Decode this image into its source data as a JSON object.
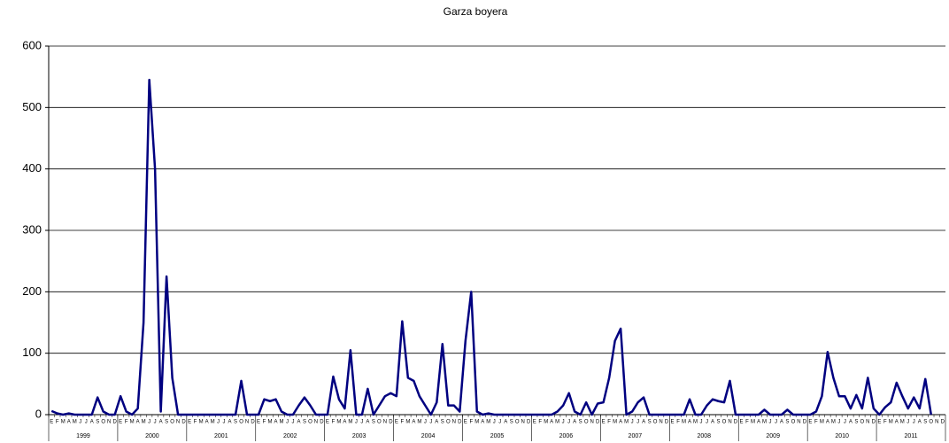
{
  "chart_data": {
    "type": "line",
    "title": "Garza boyera",
    "categories": [
      "E",
      "F",
      "M",
      "A",
      "M",
      "J",
      "J",
      "A",
      "S",
      "O",
      "N",
      "D",
      "E",
      "F",
      "M",
      "A",
      "M",
      "J",
      "J",
      "A",
      "S",
      "O",
      "N",
      "D",
      "E",
      "F",
      "M",
      "A",
      "M",
      "J",
      "J",
      "A",
      "S",
      "O",
      "N",
      "D",
      "E",
      "F",
      "M",
      "A",
      "M",
      "J",
      "J",
      "A",
      "S",
      "O",
      "N",
      "D",
      "E",
      "F",
      "M",
      "A",
      "M",
      "J",
      "J",
      "A",
      "S",
      "O",
      "N",
      "D",
      "E",
      "F",
      "M",
      "A",
      "M",
      "J",
      "J",
      "A",
      "S",
      "O",
      "N",
      "D",
      "E",
      "F",
      "M",
      "A",
      "M",
      "J",
      "J",
      "A",
      "S",
      "O",
      "N",
      "D",
      "E",
      "F",
      "M",
      "A",
      "M",
      "J",
      "J",
      "A",
      "S",
      "O",
      "N",
      "D",
      "E",
      "F",
      "M",
      "A",
      "M",
      "J",
      "J",
      "A",
      "S",
      "O",
      "N",
      "D",
      "E",
      "F",
      "M",
      "A",
      "M",
      "J",
      "J",
      "A",
      "S",
      "O",
      "N",
      "D",
      "E",
      "F",
      "M",
      "A",
      "M",
      "J",
      "J",
      "A",
      "S",
      "O",
      "N",
      "D",
      "E",
      "F",
      "M",
      "A",
      "M",
      "J",
      "J",
      "A",
      "S",
      "O",
      "N",
      "D",
      "E",
      "F",
      "M",
      "A",
      "M",
      "J",
      "J",
      "A",
      "S",
      "O",
      "N",
      "D"
    ],
    "x_groups": [
      "1999",
      "2000",
      "2001",
      "2002",
      "2003",
      "2004",
      "2005",
      "2006",
      "2007",
      "2008",
      "2009",
      "2010",
      "2011"
    ],
    "series": [
      {
        "color": "#000080",
        "values": [
          6,
          2,
          0,
          2,
          0,
          0,
          0,
          0,
          28,
          5,
          0,
          0,
          30,
          5,
          0,
          10,
          150,
          545,
          400,
          5,
          225,
          60,
          0,
          0,
          0,
          0,
          0,
          0,
          0,
          0,
          0,
          0,
          0,
          55,
          0,
          0,
          0,
          25,
          22,
          25,
          5,
          0,
          0,
          15,
          28,
          15,
          0,
          0,
          0,
          62,
          25,
          10,
          105,
          0,
          0,
          42,
          0,
          15,
          30,
          35,
          30,
          152,
          60,
          55,
          30,
          15,
          0,
          20,
          115,
          15,
          15,
          5,
          120,
          200,
          5,
          0,
          2,
          0,
          0,
          0,
          0,
          0,
          0,
          0,
          0,
          0,
          0,
          0,
          5,
          15,
          35,
          5,
          0,
          20,
          0,
          18,
          20,
          60,
          120,
          140,
          0,
          5,
          20,
          28,
          0,
          0,
          0,
          0,
          0,
          0,
          0,
          25,
          0,
          0,
          15,
          25,
          22,
          20,
          55,
          0,
          0,
          0,
          0,
          0,
          8,
          0,
          0,
          0,
          8,
          0,
          0,
          0,
          0,
          5,
          30,
          102,
          60,
          30,
          30,
          10,
          32,
          10,
          60,
          10,
          0,
          12,
          20,
          52,
          30,
          10,
          28,
          10,
          58,
          0,
          null,
          null
        ]
      }
    ],
    "ylim": [
      0,
      600
    ],
    "yticks": [
      0,
      100,
      200,
      300,
      400,
      500,
      600
    ],
    "grid": true
  }
}
